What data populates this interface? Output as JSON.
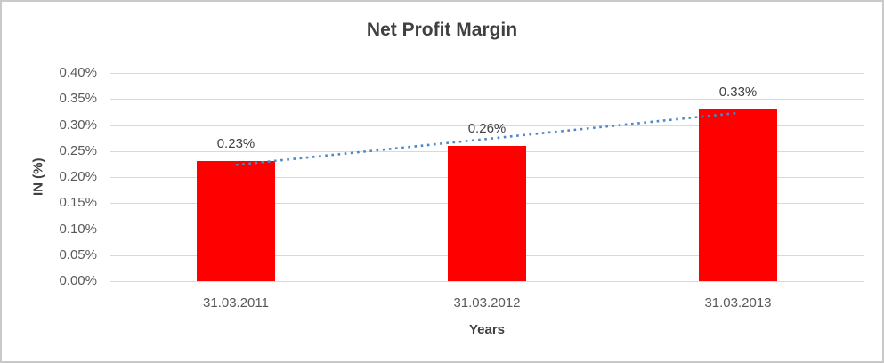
{
  "chart_data": {
    "type": "bar",
    "title": "Net Profit Margin",
    "categories": [
      "31.03.2011",
      "31.03.2012",
      "31.03.2013"
    ],
    "values": [
      0.23,
      0.26,
      0.33
    ],
    "data_labels": [
      "0.23%",
      "0.26%",
      "0.33%"
    ],
    "xlabel": "Years",
    "ylabel": "IN (%)",
    "ylim": [
      0,
      0.4
    ],
    "ytick_step": 0.05,
    "ytick_labels": [
      "0.40%",
      "0.35%",
      "0.30%",
      "0.25%",
      "0.20%",
      "0.15%",
      "0.10%",
      "0.05%",
      "0.00%"
    ],
    "grid": true,
    "legend": "none",
    "bar_color": "#ff0000",
    "gridline_color": "#d9d9d9",
    "trendline": {
      "type": "linear",
      "style": "dotted",
      "color": "#4c87c8",
      "endpoint_values": [
        0.2233,
        0.3233
      ]
    }
  }
}
